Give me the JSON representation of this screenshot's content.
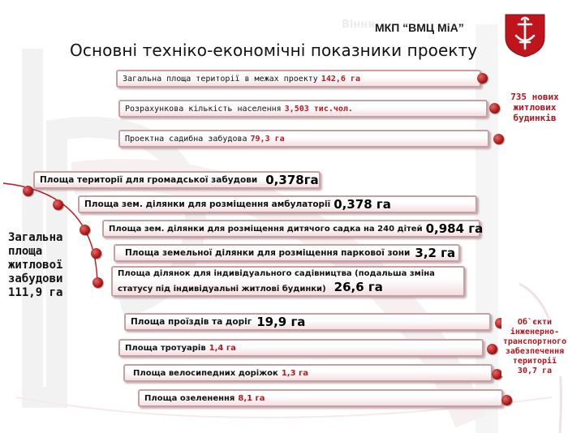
{
  "header": {
    "ghost_text": "Вінни",
    "company": "МКП “ВМЦ МіА”",
    "title": "Основні техніко-економічні показники проекту"
  },
  "colors": {
    "accent": "#c0141d",
    "pill_border": "#c8a0a4",
    "pill_fill": "#f3dfe1"
  },
  "project_items": [
    {
      "label": "Загальна площа території в межах проекту",
      "value": "142,6 га"
    },
    {
      "label": "Розрахункова кількість населення",
      "value": "3,503 тис.чол."
    },
    {
      "label": "Проектна садибна забудова",
      "value": "79,3 га"
    }
  ],
  "housing_badge": "735 нових житлових будинків",
  "residential": {
    "label": "Загальна площа житлової забудови 111,9 га",
    "items": [
      {
        "label": "Площа території для громадської забудови",
        "value": "0,378га"
      },
      {
        "label": "Площа зем. ділянки для розміщення амбулаторії",
        "value": "0,378 га"
      },
      {
        "label": "Площа зем. ділянки для розміщення дитячого садка на 240 дітей",
        "value": "0,984 га"
      },
      {
        "label": "Площа земельної ділянки для  розміщення паркової зони",
        "value": "3,2 га"
      },
      {
        "label": "Площа ділянок для індивідуального садівництва (подальша зміна статусу під індивідуальні житлові будинки)",
        "value": "26,6 га"
      }
    ]
  },
  "infra_items": [
    {
      "label": "Площа проїздів та доріг",
      "value": "19,9 га"
    },
    {
      "label": "Площа тротуарів",
      "value": "1,4 га"
    },
    {
      "label": "Площа велосипедних доріжок",
      "value": "1,3 га"
    },
    {
      "label": "Площа озеленення",
      "value": "8,1 га"
    }
  ],
  "infra_badge": "Об`єкти інженерно-транспортного забезпечення території 30,7 га",
  "icons": {
    "logo": "vinnytsia-coat-of-arms-icon",
    "bullet": "red-sphere-bullet-icon"
  }
}
